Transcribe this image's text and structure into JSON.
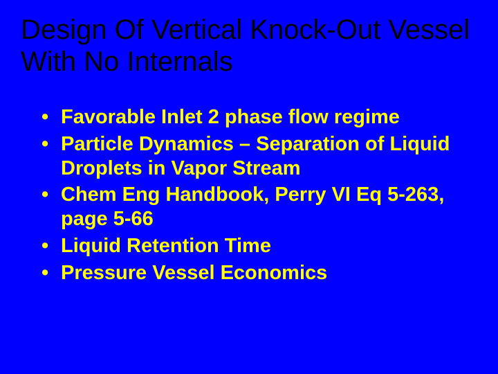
{
  "slide": {
    "background_color": "#0000ff",
    "title": {
      "text": "Design Of Vertical Knock-Out Vessel With No Internals",
      "color": "#000000",
      "font_size": 40,
      "font_weight": "normal"
    },
    "bullets": {
      "color": "#ffff00",
      "font_size": 29,
      "font_weight": "bold",
      "items": [
        "Favorable Inlet 2 phase flow regime",
        "Particle Dynamics – Separation of Liquid Droplets in Vapor Stream",
        "Chem Eng Handbook, Perry VI Eq 5-263, page 5-66",
        "Liquid Retention Time",
        "Pressure Vessel Economics"
      ]
    }
  }
}
